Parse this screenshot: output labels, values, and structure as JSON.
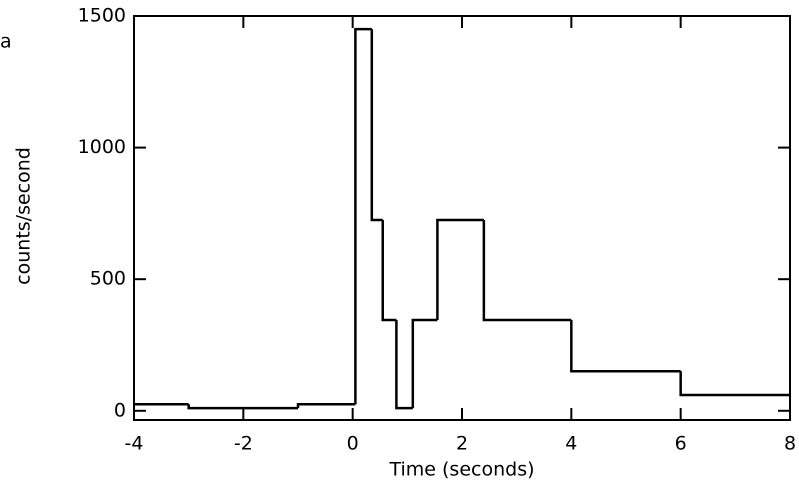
{
  "chart_data": {
    "type": "histogram",
    "annotation": "a",
    "xlabel": "Time (seconds)",
    "ylabel": "counts/second",
    "bins": [
      -4,
      -3,
      -1,
      0.05,
      0.35,
      0.55,
      0.8,
      1.1,
      1.55,
      2.4,
      4,
      6,
      8
    ],
    "counts": [
      25,
      10,
      25,
      1450,
      725,
      345,
      10,
      345,
      725,
      345,
      150,
      60
    ],
    "color": "#000000",
    "xlim": [
      -4,
      8
    ],
    "xticks": [
      -4,
      -2,
      0,
      2,
      4,
      6,
      8
    ],
    "ylim": [
      -35,
      1500
    ],
    "yticks": [
      0,
      500,
      1000,
      1500
    ]
  }
}
